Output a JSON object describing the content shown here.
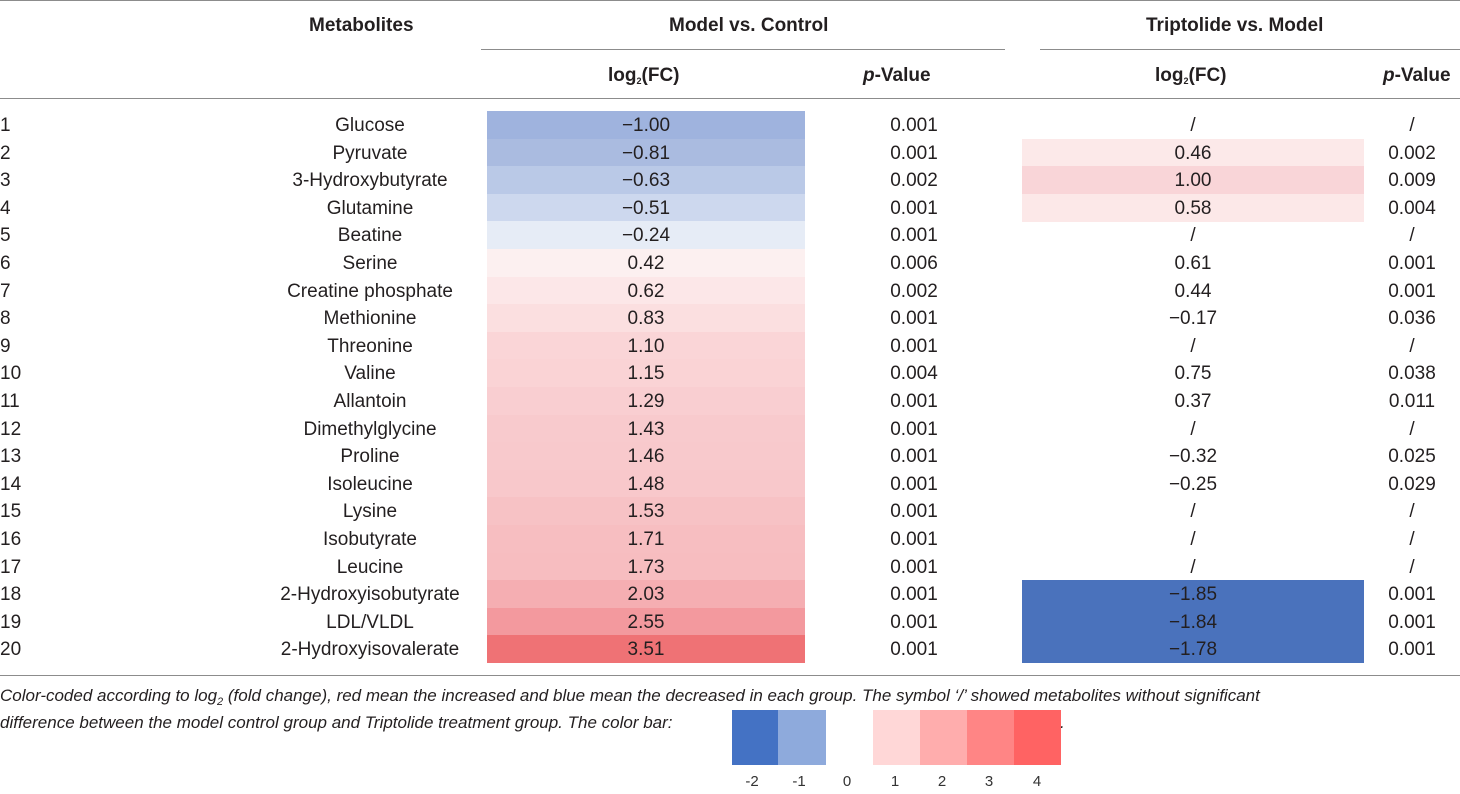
{
  "headers": {
    "metabolites": "Metabolites",
    "group1": "Model vs. Control",
    "group2": "Triptolide vs. Model",
    "log_prefix": "log",
    "log_sub": "2",
    "log_suffix": "(FC)",
    "p_italic": "p",
    "p_rest": "-Value"
  },
  "rows": [
    {
      "num": "1",
      "name": "Glucose",
      "fc1": "−1.00",
      "p1": "0.001",
      "fc2": "/",
      "p2": "/",
      "bg1": "#9fb3de",
      "bg2": ""
    },
    {
      "num": "2",
      "name": "Pyruvate",
      "fc1": "−0.81",
      "p1": "0.001",
      "fc2": "0.46",
      "p2": "0.002",
      "bg1": "#aabbe0",
      "bg2": "#fce9e9"
    },
    {
      "num": "3",
      "name": "3-Hydroxybutyrate",
      "fc1": "−0.63",
      "p1": "0.002",
      "fc2": "1.00",
      "p2": "0.009",
      "bg1": "#bac9e7",
      "bg2": "#f9d5d8"
    },
    {
      "num": "4",
      "name": "Glutamine",
      "fc1": "−0.51",
      "p1": "0.001",
      "fc2": "0.58",
      "p2": "0.004",
      "bg1": "#cdd8ee",
      "bg2": "#fce8e8"
    },
    {
      "num": "5",
      "name": "Beatine",
      "fc1": "−0.24",
      "p1": "0.001",
      "fc2": "/",
      "p2": "/",
      "bg1": "#e6ecf6",
      "bg2": ""
    },
    {
      "num": "6",
      "name": "Serine",
      "fc1": "0.42",
      "p1": "0.006",
      "fc2": "0.61",
      "p2": "0.001",
      "bg1": "#fcf0f0",
      "bg2": ""
    },
    {
      "num": "7",
      "name": "Creatine phosphate",
      "fc1": "0.62",
      "p1": "0.002",
      "fc2": "0.44",
      "p2": "0.001",
      "bg1": "#fce7e8",
      "bg2": ""
    },
    {
      "num": "8",
      "name": "Methionine",
      "fc1": "0.83",
      "p1": "0.001",
      "fc2": "−0.17",
      "p2": "0.036",
      "bg1": "#fbdfe0",
      "bg2": ""
    },
    {
      "num": "9",
      "name": "Threonine",
      "fc1": "1.10",
      "p1": "0.001",
      "fc2": "/",
      "p2": "/",
      "bg1": "#fad5d7",
      "bg2": ""
    },
    {
      "num": "10",
      "name": "Valine",
      "fc1": "1.15",
      "p1": "0.004",
      "fc2": "0.75",
      "p2": "0.038",
      "bg1": "#fad3d5",
      "bg2": ""
    },
    {
      "num": "11",
      "name": "Allantoin",
      "fc1": "1.29",
      "p1": "0.001",
      "fc2": "0.37",
      "p2": "0.011",
      "bg1": "#f9ced1",
      "bg2": ""
    },
    {
      "num": "12",
      "name": "Dimethylglycine",
      "fc1": "1.43",
      "p1": "0.001",
      "fc2": "/",
      "p2": "/",
      "bg1": "#f8cacd",
      "bg2": ""
    },
    {
      "num": "13",
      "name": "Proline",
      "fc1": "1.46",
      "p1": "0.001",
      "fc2": "−0.32",
      "p2": "0.025",
      "bg1": "#f8c9cc",
      "bg2": ""
    },
    {
      "num": "14",
      "name": "Isoleucine",
      "fc1": "1.48",
      "p1": "0.001",
      "fc2": "−0.25",
      "p2": "0.029",
      "bg1": "#f8c8cb",
      "bg2": ""
    },
    {
      "num": "15",
      "name": "Lysine",
      "fc1": "1.53",
      "p1": "0.001",
      "fc2": "/",
      "p2": "/",
      "bg1": "#f7c2c5",
      "bg2": ""
    },
    {
      "num": "16",
      "name": "Isobutyrate",
      "fc1": "1.71",
      "p1": "0.001",
      "fc2": "/",
      "p2": "/",
      "bg1": "#f7bec1",
      "bg2": ""
    },
    {
      "num": "17",
      "name": "Leucine",
      "fc1": "1.73",
      "p1": "0.001",
      "fc2": "/",
      "p2": "/",
      "bg1": "#f7bdc0",
      "bg2": ""
    },
    {
      "num": "18",
      "name": "2-Hydroxyisobutyrate",
      "fc1": "2.03",
      "p1": "0.001",
      "fc2": "−1.85",
      "p2": "0.001",
      "bg1": "#f5aeb2",
      "bg2": "#4a72bc"
    },
    {
      "num": "19",
      "name": "LDL/VLDL",
      "fc1": "2.55",
      "p1": "0.001",
      "fc2": "−1.84",
      "p2": "0.001",
      "bg1": "#f3999e",
      "bg2": "#4a72bc"
    },
    {
      "num": "20",
      "name": "2-Hydroxyisovalerate",
      "fc1": "3.51",
      "p1": "0.001",
      "fc2": "−1.78",
      "p2": "0.001",
      "bg1": "#ef7275",
      "bg2": "#4a72bc"
    }
  ],
  "caption": {
    "line1_a": "Color-coded according to log",
    "line1_sub": "2",
    "line1_b": " (fold change), red mean the increased and blue mean the decreased in each group. The symbol ‘/’ showed metabolites without significant",
    "line2": "difference between the model control group and Triptolide treatment group. The color bar:",
    "line2_end": "."
  },
  "colorbar": {
    "colors": [
      "#4472c4",
      "#8eaadc",
      "#ffffff",
      "#ffd7d7",
      "#ffadad",
      "#ff8585",
      "#ff6363"
    ],
    "ticks": [
      "-2",
      "-1",
      "0",
      "1",
      "2",
      "3",
      "4"
    ]
  }
}
